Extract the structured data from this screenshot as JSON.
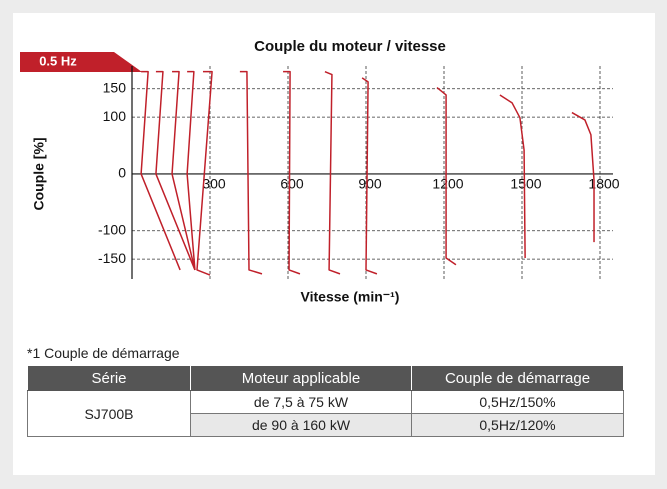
{
  "chart_data": {
    "type": "line",
    "title": "Couple du moteur / vitesse",
    "y_label": "Couple [%]",
    "x_label": "Vitesse (min⁻¹)",
    "annotation": "0.5 Hz",
    "color": "#c0202a",
    "grid": true,
    "xlim": [
      0,
      1850
    ],
    "ylim": [
      -185,
      190
    ],
    "xticks": [
      300,
      600,
      900,
      1200,
      1500,
      1800
    ],
    "yticks": [
      150,
      100,
      0,
      -100,
      -150
    ],
    "series": [
      {
        "x": [
          35,
          62,
          35,
          185
        ],
        "y": [
          180,
          180,
          0,
          -169
        ]
      },
      {
        "x": [
          92,
          119,
          92,
          242
        ],
        "y": [
          180,
          180,
          0,
          -169
        ]
      },
      {
        "x": [
          154,
          181,
          154,
          242
        ],
        "y": [
          180,
          180,
          0,
          -169
        ]
      },
      {
        "x": [
          212,
          238,
          212,
          242
        ],
        "y": [
          180,
          180,
          0,
          -169
        ]
      },
      {
        "x": [
          273,
          308,
          250,
          300
        ],
        "y": [
          180,
          180,
          -169,
          -178
        ]
      },
      {
        "x": [
          415,
          442,
          450,
          500
        ],
        "y": [
          180,
          180,
          -169,
          -176
        ]
      },
      {
        "x": [
          581,
          608,
          604,
          646
        ],
        "y": [
          180,
          180,
          -169,
          -176
        ]
      },
      {
        "x": [
          742,
          769,
          758,
          800
        ],
        "y": [
          180,
          175,
          -169,
          -176
        ]
      },
      {
        "x": [
          885,
          908,
          900,
          942
        ],
        "y": [
          169,
          162,
          -169,
          -176
        ]
      },
      {
        "x": [
          1173,
          1208,
          1208,
          1246
        ],
        "y": [
          152,
          139,
          -148,
          -160
        ]
      },
      {
        "x": [
          1415,
          1462,
          1492,
          1508,
          1512
        ],
        "y": [
          139,
          125,
          99,
          42,
          -148
        ]
      },
      {
        "x": [
          1692,
          1742,
          1765,
          1777,
          1777
        ],
        "y": [
          108,
          95,
          69,
          -11,
          -120
        ]
      }
    ]
  },
  "note": "*1 Couple de démarrage",
  "table": {
    "header": [
      "Série",
      "Moteur applicable",
      "Couple de démarrage"
    ],
    "rows": [
      [
        "SJ700B",
        "de 7,5 à 75 kW",
        "0,5Hz/150%"
      ],
      [
        "de 90 à 160 kW",
        "0,5Hz/120%"
      ]
    ]
  }
}
